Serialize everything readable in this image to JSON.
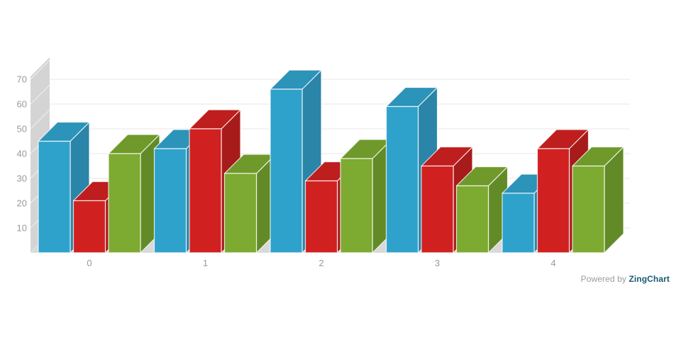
{
  "branding": {
    "powered_by_label": "Powered by",
    "brand_label": "ZingChart",
    "powered_by_color": "#9b9b9b",
    "brand_color": "#1b5971"
  },
  "chart_data": {
    "type": "bar",
    "projection": "3d",
    "title": "",
    "xlabel": "",
    "ylabel": "",
    "categories": [
      "0",
      "1",
      "2",
      "3",
      "4"
    ],
    "series": [
      {
        "name": "blue",
        "values": [
          45,
          42,
          66,
          59,
          24
        ],
        "color": "#2FA2CC",
        "color_top": "#2C93B9",
        "color_side": "#2A85A8"
      },
      {
        "name": "red",
        "values": [
          21,
          50,
          29,
          35,
          42
        ],
        "color": "#D12020",
        "color_top": "#BE1E1E",
        "color_side": "#A81B1B"
      },
      {
        "name": "green",
        "values": [
          40,
          32,
          38,
          27,
          35
        ],
        "color": "#7DAA30",
        "color_top": "#6F9A2B",
        "color_side": "#628A26"
      }
    ],
    "yticks": [
      10,
      20,
      30,
      40,
      50,
      60,
      70
    ],
    "ylim": [
      0,
      71
    ],
    "grid": true,
    "legend": "none",
    "axis_text_color": "#999999",
    "grid_color": "#E7E7E7",
    "wall_color": "#D4D4D4",
    "wall_hatch_color": "rgba(255,255,255,0.6)",
    "floor_color": "#D9D9D9",
    "edge_color": "rgba(255,255,255,0.8)"
  }
}
